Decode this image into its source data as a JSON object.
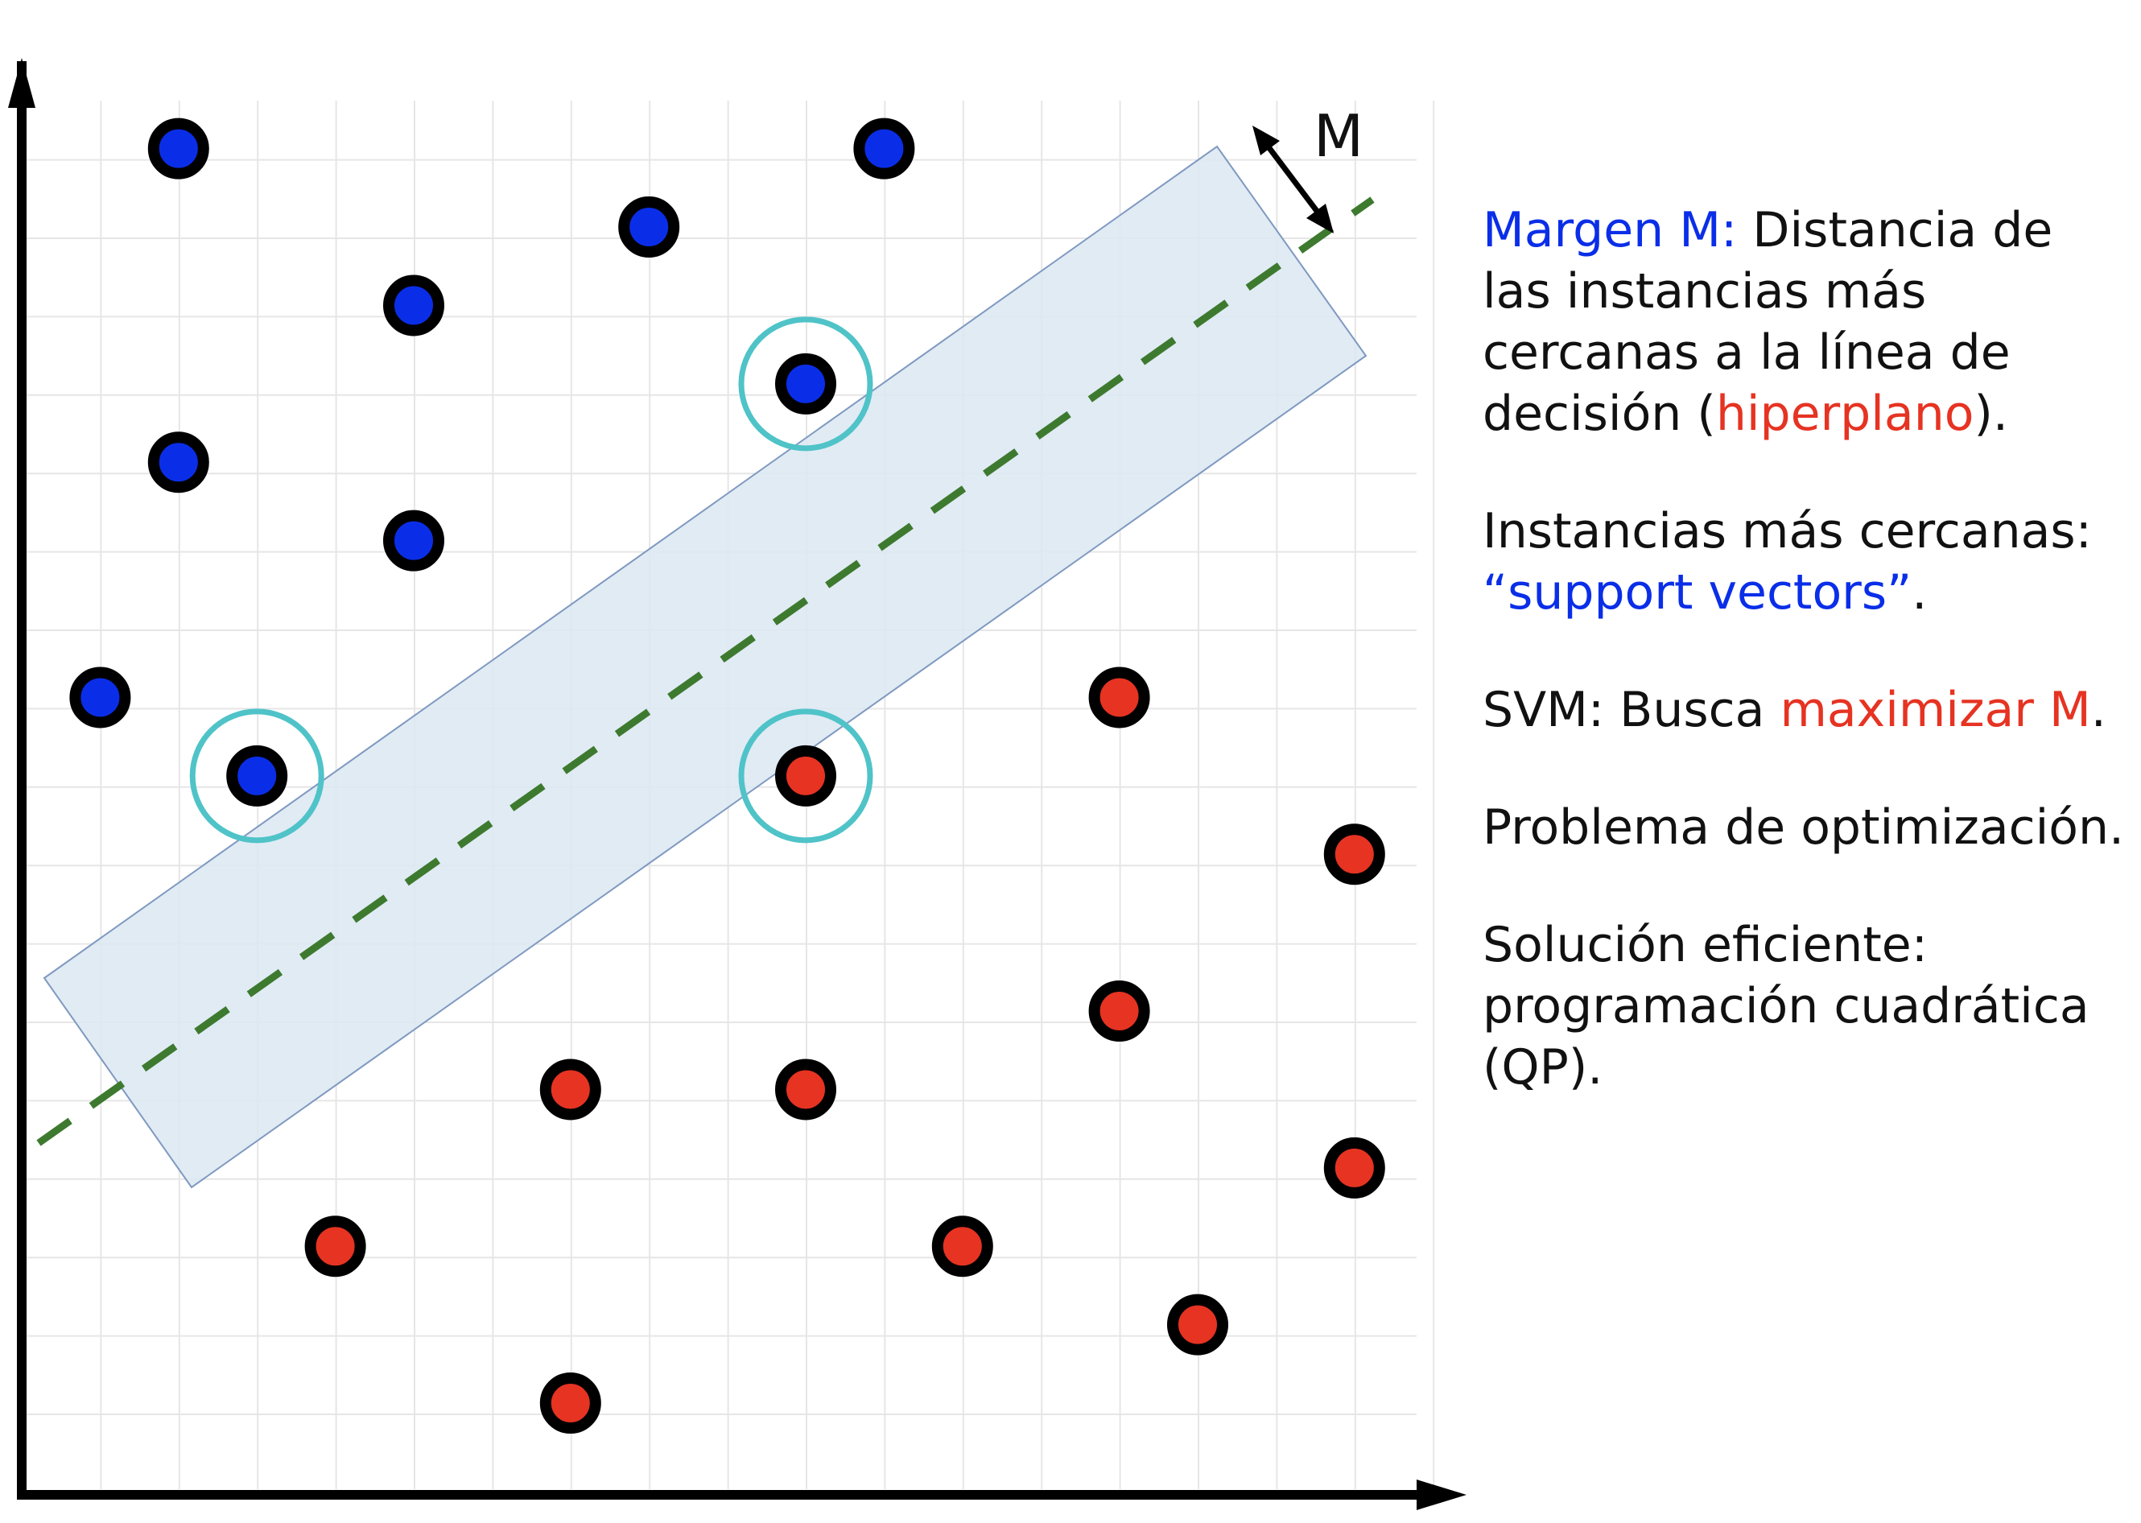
{
  "colors": {
    "blue_points": "#0a2ee8",
    "red_points": "#e63322",
    "highlight_blue_text": "#0a2ee8",
    "highlight_red_text": "#e63322",
    "margin_band": "#dce7f2",
    "decision_line": "#3d7a2f",
    "support_vector_ring": "#4fc3c8",
    "grid": "#e6e6e6",
    "axes": "#000000"
  },
  "diagram": {
    "margin_label": "M",
    "grid_visible": true,
    "points": [
      {
        "class": "blue",
        "x": 2,
        "y": 17,
        "support_vector": false
      },
      {
        "class": "blue",
        "x": 11,
        "y": 17,
        "support_vector": false
      },
      {
        "class": "blue",
        "x": 8,
        "y": 16,
        "support_vector": false
      },
      {
        "class": "blue",
        "x": 5,
        "y": 15,
        "support_vector": false
      },
      {
        "class": "blue",
        "x": 10,
        "y": 14,
        "support_vector": true
      },
      {
        "class": "blue",
        "x": 2,
        "y": 13,
        "support_vector": false
      },
      {
        "class": "blue",
        "x": 5,
        "y": 12,
        "support_vector": false
      },
      {
        "class": "blue",
        "x": 1,
        "y": 10,
        "support_vector": false
      },
      {
        "class": "blue",
        "x": 3,
        "y": 9,
        "support_vector": true
      },
      {
        "class": "red",
        "x": 14,
        "y": 10,
        "support_vector": false
      },
      {
        "class": "red",
        "x": 10,
        "y": 9,
        "support_vector": true
      },
      {
        "class": "red",
        "x": 17,
        "y": 8,
        "support_vector": false
      },
      {
        "class": "red",
        "x": 14,
        "y": 6,
        "support_vector": false
      },
      {
        "class": "red",
        "x": 7,
        "y": 5,
        "support_vector": false
      },
      {
        "class": "red",
        "x": 10,
        "y": 5,
        "support_vector": false
      },
      {
        "class": "red",
        "x": 17,
        "y": 4,
        "support_vector": false
      },
      {
        "class": "red",
        "x": 4,
        "y": 3,
        "support_vector": false
      },
      {
        "class": "red",
        "x": 12,
        "y": 3,
        "support_vector": false
      },
      {
        "class": "red",
        "x": 15,
        "y": 2,
        "support_vector": false
      },
      {
        "class": "red",
        "x": 7,
        "y": 1,
        "support_vector": false
      }
    ]
  },
  "notes": {
    "margin": {
      "term": "Margen M:",
      "text_before": " Distancia de las instancias más cercanas a la línea de decisión (",
      "highlight": "hiperplano",
      "text_after": ")."
    },
    "support": {
      "text": "Instancias más cercanas: ",
      "highlight": "“support vectors”",
      "text_after": "."
    },
    "svm": {
      "text": "SVM: Busca ",
      "highlight": "maximizar M",
      "text_after": "."
    },
    "problem": {
      "text": "Problema de optimización."
    },
    "solution": {
      "text": "Solución eficiente: programación cuadrática (QP)."
    }
  }
}
